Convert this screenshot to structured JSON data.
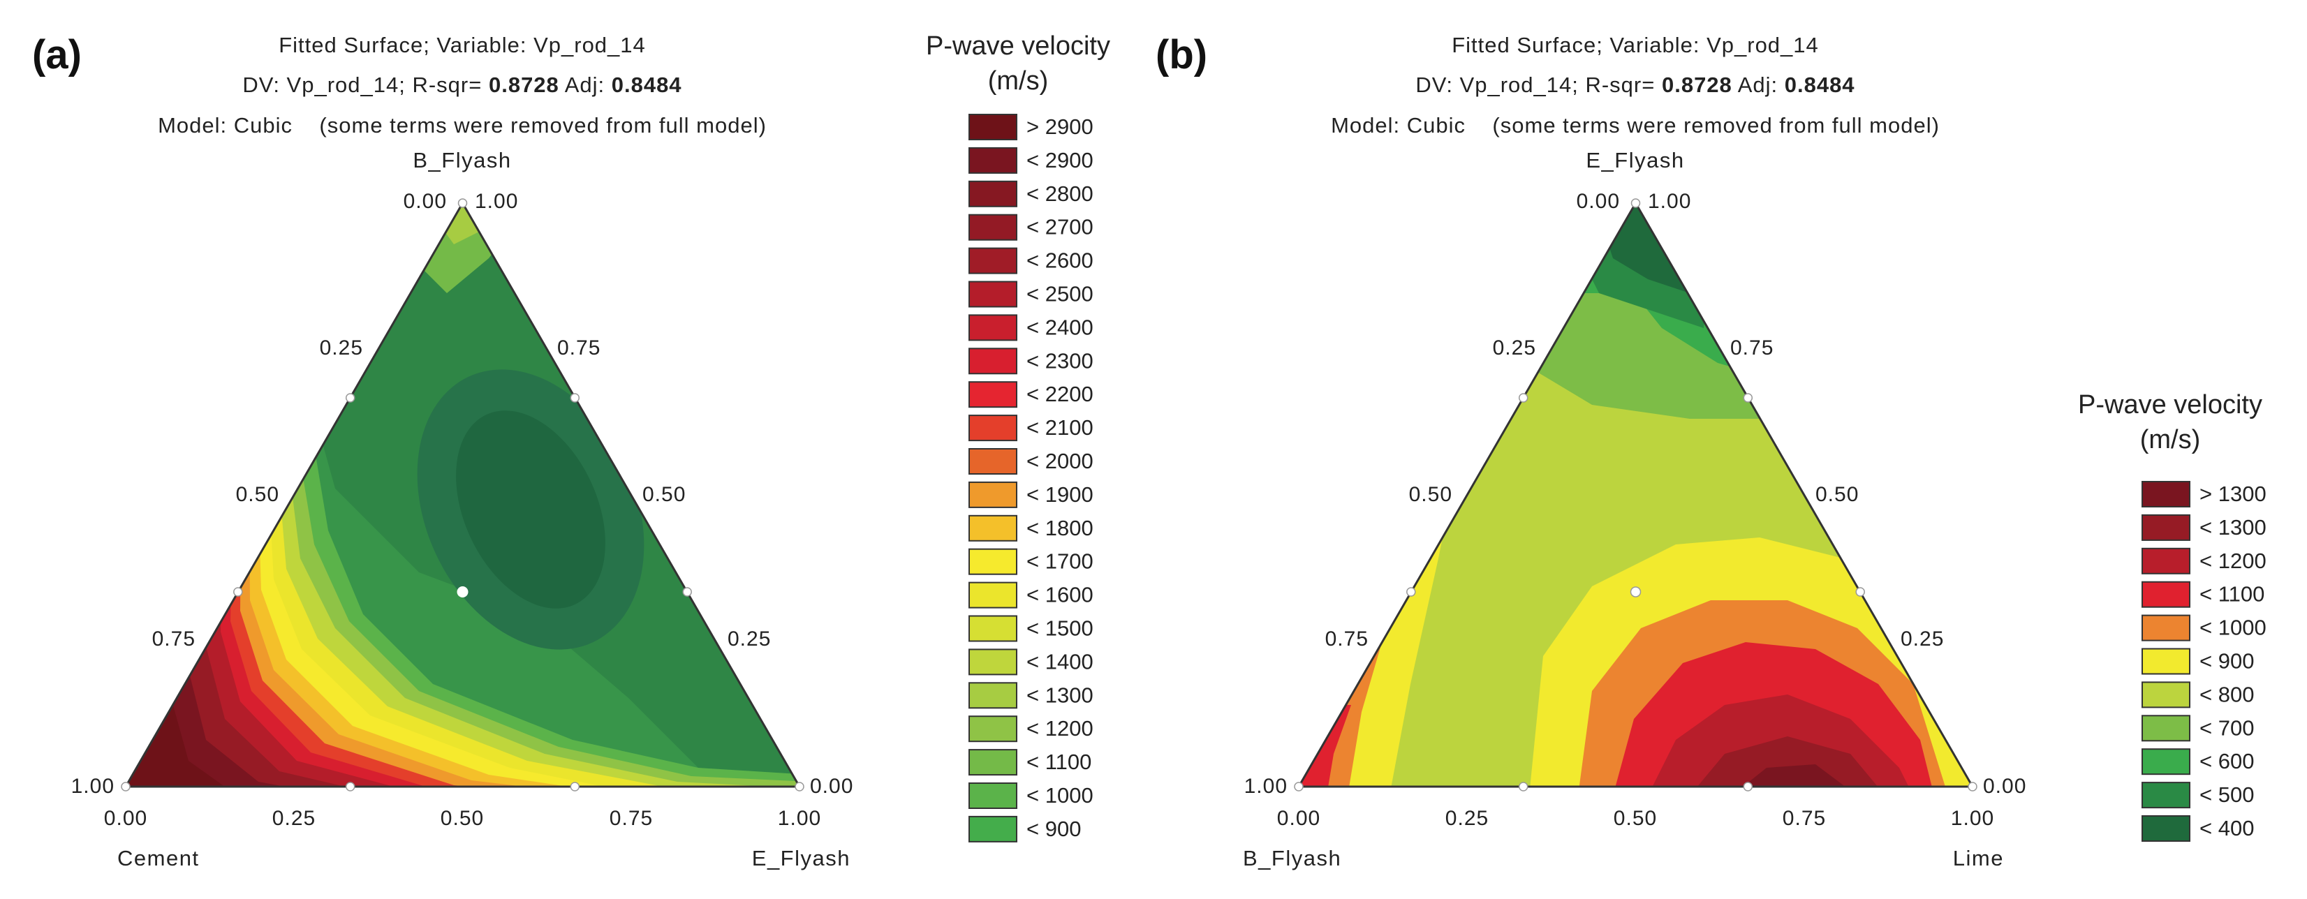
{
  "chart_data": [
    {
      "panel": "(a)",
      "type": "ternary-contour",
      "header": {
        "line1": "Fitted Surface; Variable: Vp_rod_14",
        "line2_pre": "DV: Vp_rod_14; R-sqr= ",
        "rsq": "0.8728",
        "line2_mid": "Adj: ",
        "adj": "0.8484",
        "line3": "Model: Cubic    (some terms were removed from full model)"
      },
      "apex_label": "B_Flyash",
      "bottom_left_label": "Cement",
      "bottom_right_label": "E_Flyash",
      "apex_ticks": [
        "0.00",
        "1.00"
      ],
      "left_edge_ticks": [
        "0.25",
        "0.50",
        "0.75"
      ],
      "right_edge_ticks": [
        "0.75",
        "0.50",
        "0.25"
      ],
      "corner_left_tick": "1.00",
      "corner_right_tick": "0.00",
      "bottom_ticks": [
        "0.00",
        "0.25",
        "0.50",
        "0.75",
        "1.00"
      ],
      "legend_title": [
        "P-wave velocity",
        "(m/s)"
      ],
      "legend": [
        {
          "label": "> 2900",
          "color": "#6e1218"
        },
        {
          "label": "< 2900",
          "color": "#7a1520"
        },
        {
          "label": "< 2800",
          "color": "#861822"
        },
        {
          "label": "< 2700",
          "color": "#931a25"
        },
        {
          "label": "< 2600",
          "color": "#a01c27"
        },
        {
          "label": "< 2500",
          "color": "#b41d2a"
        },
        {
          "label": "< 2400",
          "color": "#c91f2d"
        },
        {
          "label": "< 2300",
          "color": "#d81f2f"
        },
        {
          "label": "< 2200",
          "color": "#e52530"
        },
        {
          "label": "< 2100",
          "color": "#e43f2b"
        },
        {
          "label": "< 2000",
          "color": "#e6652a"
        },
        {
          "label": "< 1900",
          "color": "#ef9a2c"
        },
        {
          "label": "< 1800",
          "color": "#f4c02a"
        },
        {
          "label": "< 1700",
          "color": "#f6ea2d"
        },
        {
          "label": "< 1600",
          "color": "#ebe52c"
        },
        {
          "label": "< 1500",
          "color": "#d6df33"
        },
        {
          "label": "< 1400",
          "color": "#bfd63c"
        },
        {
          "label": "< 1300",
          "color": "#a7cc42"
        },
        {
          "label": "< 1200",
          "color": "#8fc346"
        },
        {
          "label": "< 1100",
          "color": "#74ba48"
        },
        {
          "label": "< 1000",
          "color": "#5bb34a"
        },
        {
          "label": "< 900",
          "color": "#44ad4b"
        }
      ],
      "center_point": [
        0.333,
        0.333,
        0.333
      ],
      "note": "Ternary contour surface: high velocity (dark red, >2900) near Cement corner and along lower-left; yellow band ~1600-1800 sweeping from left edge to bottom-right; greens elsewhere with darkest (<900) region around centre-right; data points marked at edge midpoints/thirds."
    },
    {
      "panel": "(b)",
      "type": "ternary-contour",
      "header": {
        "line1": "Fitted Surface; Variable: Vp_rod_14",
        "line2_pre": "DV: Vp_rod_14; R-sqr= ",
        "rsq": "0.8728",
        "line2_mid": "Adj: ",
        "adj": "0.8484",
        "line3": "Model: Cubic    (some terms were removed from full model)"
      },
      "apex_label": "E_Flyash",
      "bottom_left_label": "B_Flyash",
      "bottom_right_label": "Lime",
      "apex_ticks": [
        "0.00",
        "1.00"
      ],
      "left_edge_ticks": [
        "0.25",
        "0.50",
        "0.75"
      ],
      "right_edge_ticks": [
        "0.75",
        "0.50",
        "0.25"
      ],
      "corner_left_tick": "1.00",
      "corner_right_tick": "0.00",
      "bottom_ticks": [
        "0.00",
        "0.25",
        "0.50",
        "0.75",
        "1.00"
      ],
      "legend_title": [
        "P-wave velocity",
        "(m/s)"
      ],
      "legend": [
        {
          "label": "> 1300",
          "color": "#7a1520"
        },
        {
          "label": "< 1300",
          "color": "#961b25"
        },
        {
          "label": "< 1200",
          "color": "#b81e2b"
        },
        {
          "label": "< 1100",
          "color": "#e0212f"
        },
        {
          "label": "< 1000",
          "color": "#ec8430"
        },
        {
          "label": "< 900",
          "color": "#f2ea2e"
        },
        {
          "label": "< 800",
          "color": "#bcd43e"
        },
        {
          "label": "< 700",
          "color": "#7dbd47"
        },
        {
          "label": "< 600",
          "color": "#3aac4c"
        },
        {
          "label": "< 500",
          "color": "#2a8a45"
        },
        {
          "label": "< 400",
          "color": "#1f6a3c"
        }
      ],
      "center_point": [
        0.333,
        0.333,
        0.333
      ],
      "note": "Ternary contour surface: high velocity (dark red >1300) near bottom at Lime ~0.7; concentric bands outward through orange/yellow/light green; dark green (<400-500) at E_Flyash apex; yellow strip along left edge."
    }
  ]
}
